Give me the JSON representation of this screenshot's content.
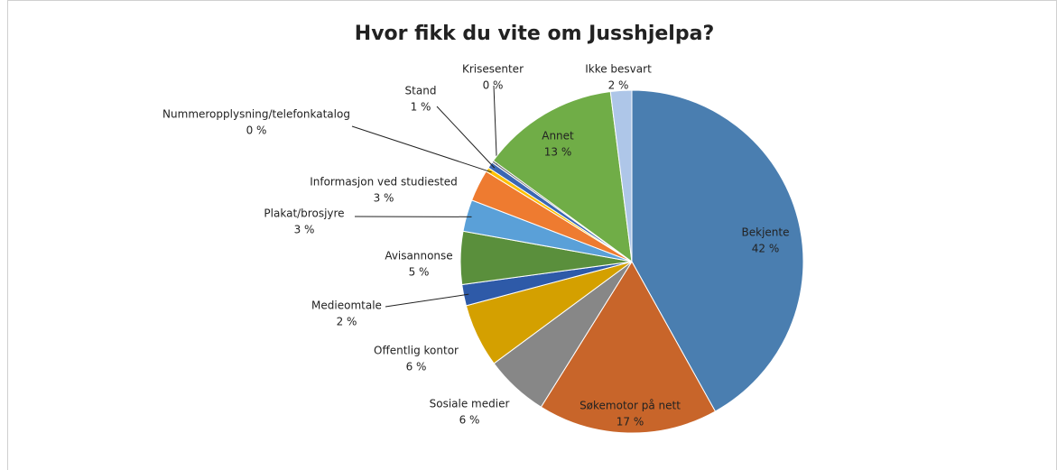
{
  "chart_data": {
    "type": "pie",
    "title": "Hvor fikk du vite om Jusshjelpa?",
    "categories": [
      "Bekjente",
      "Søkemotor  på nett",
      "Sosiale medier",
      "Offentlig kontor",
      "Medieomtale",
      "Avisannonse",
      "Plakat/brosjyre",
      "Informasjon ved studiested",
      "Nummeropplysning/telefonkatalog",
      "Stand",
      "Krisesenter",
      "Annet",
      "Ikke besvart"
    ],
    "values": [
      42,
      17,
      6,
      6,
      2,
      5,
      3,
      3,
      0.4,
      0.6,
      0.2,
      13,
      2
    ],
    "value_labels": [
      "42 %",
      "17 %",
      "6 %",
      "6 %",
      "2 %",
      "5 %",
      "3 %",
      "3 %",
      "0 %",
      "1 %",
      "0 %",
      "13 %",
      "2 %"
    ],
    "colors": [
      "#4a7eb0",
      "#c8652a",
      "#878787",
      "#d4a000",
      "#2e5aa8",
      "#5a8f3c",
      "#5aa0d8",
      "#ee7b30",
      "#ffc000",
      "#3b67b3",
      "#6f6f6f",
      "#70ad47",
      "#aec6e8"
    ]
  }
}
